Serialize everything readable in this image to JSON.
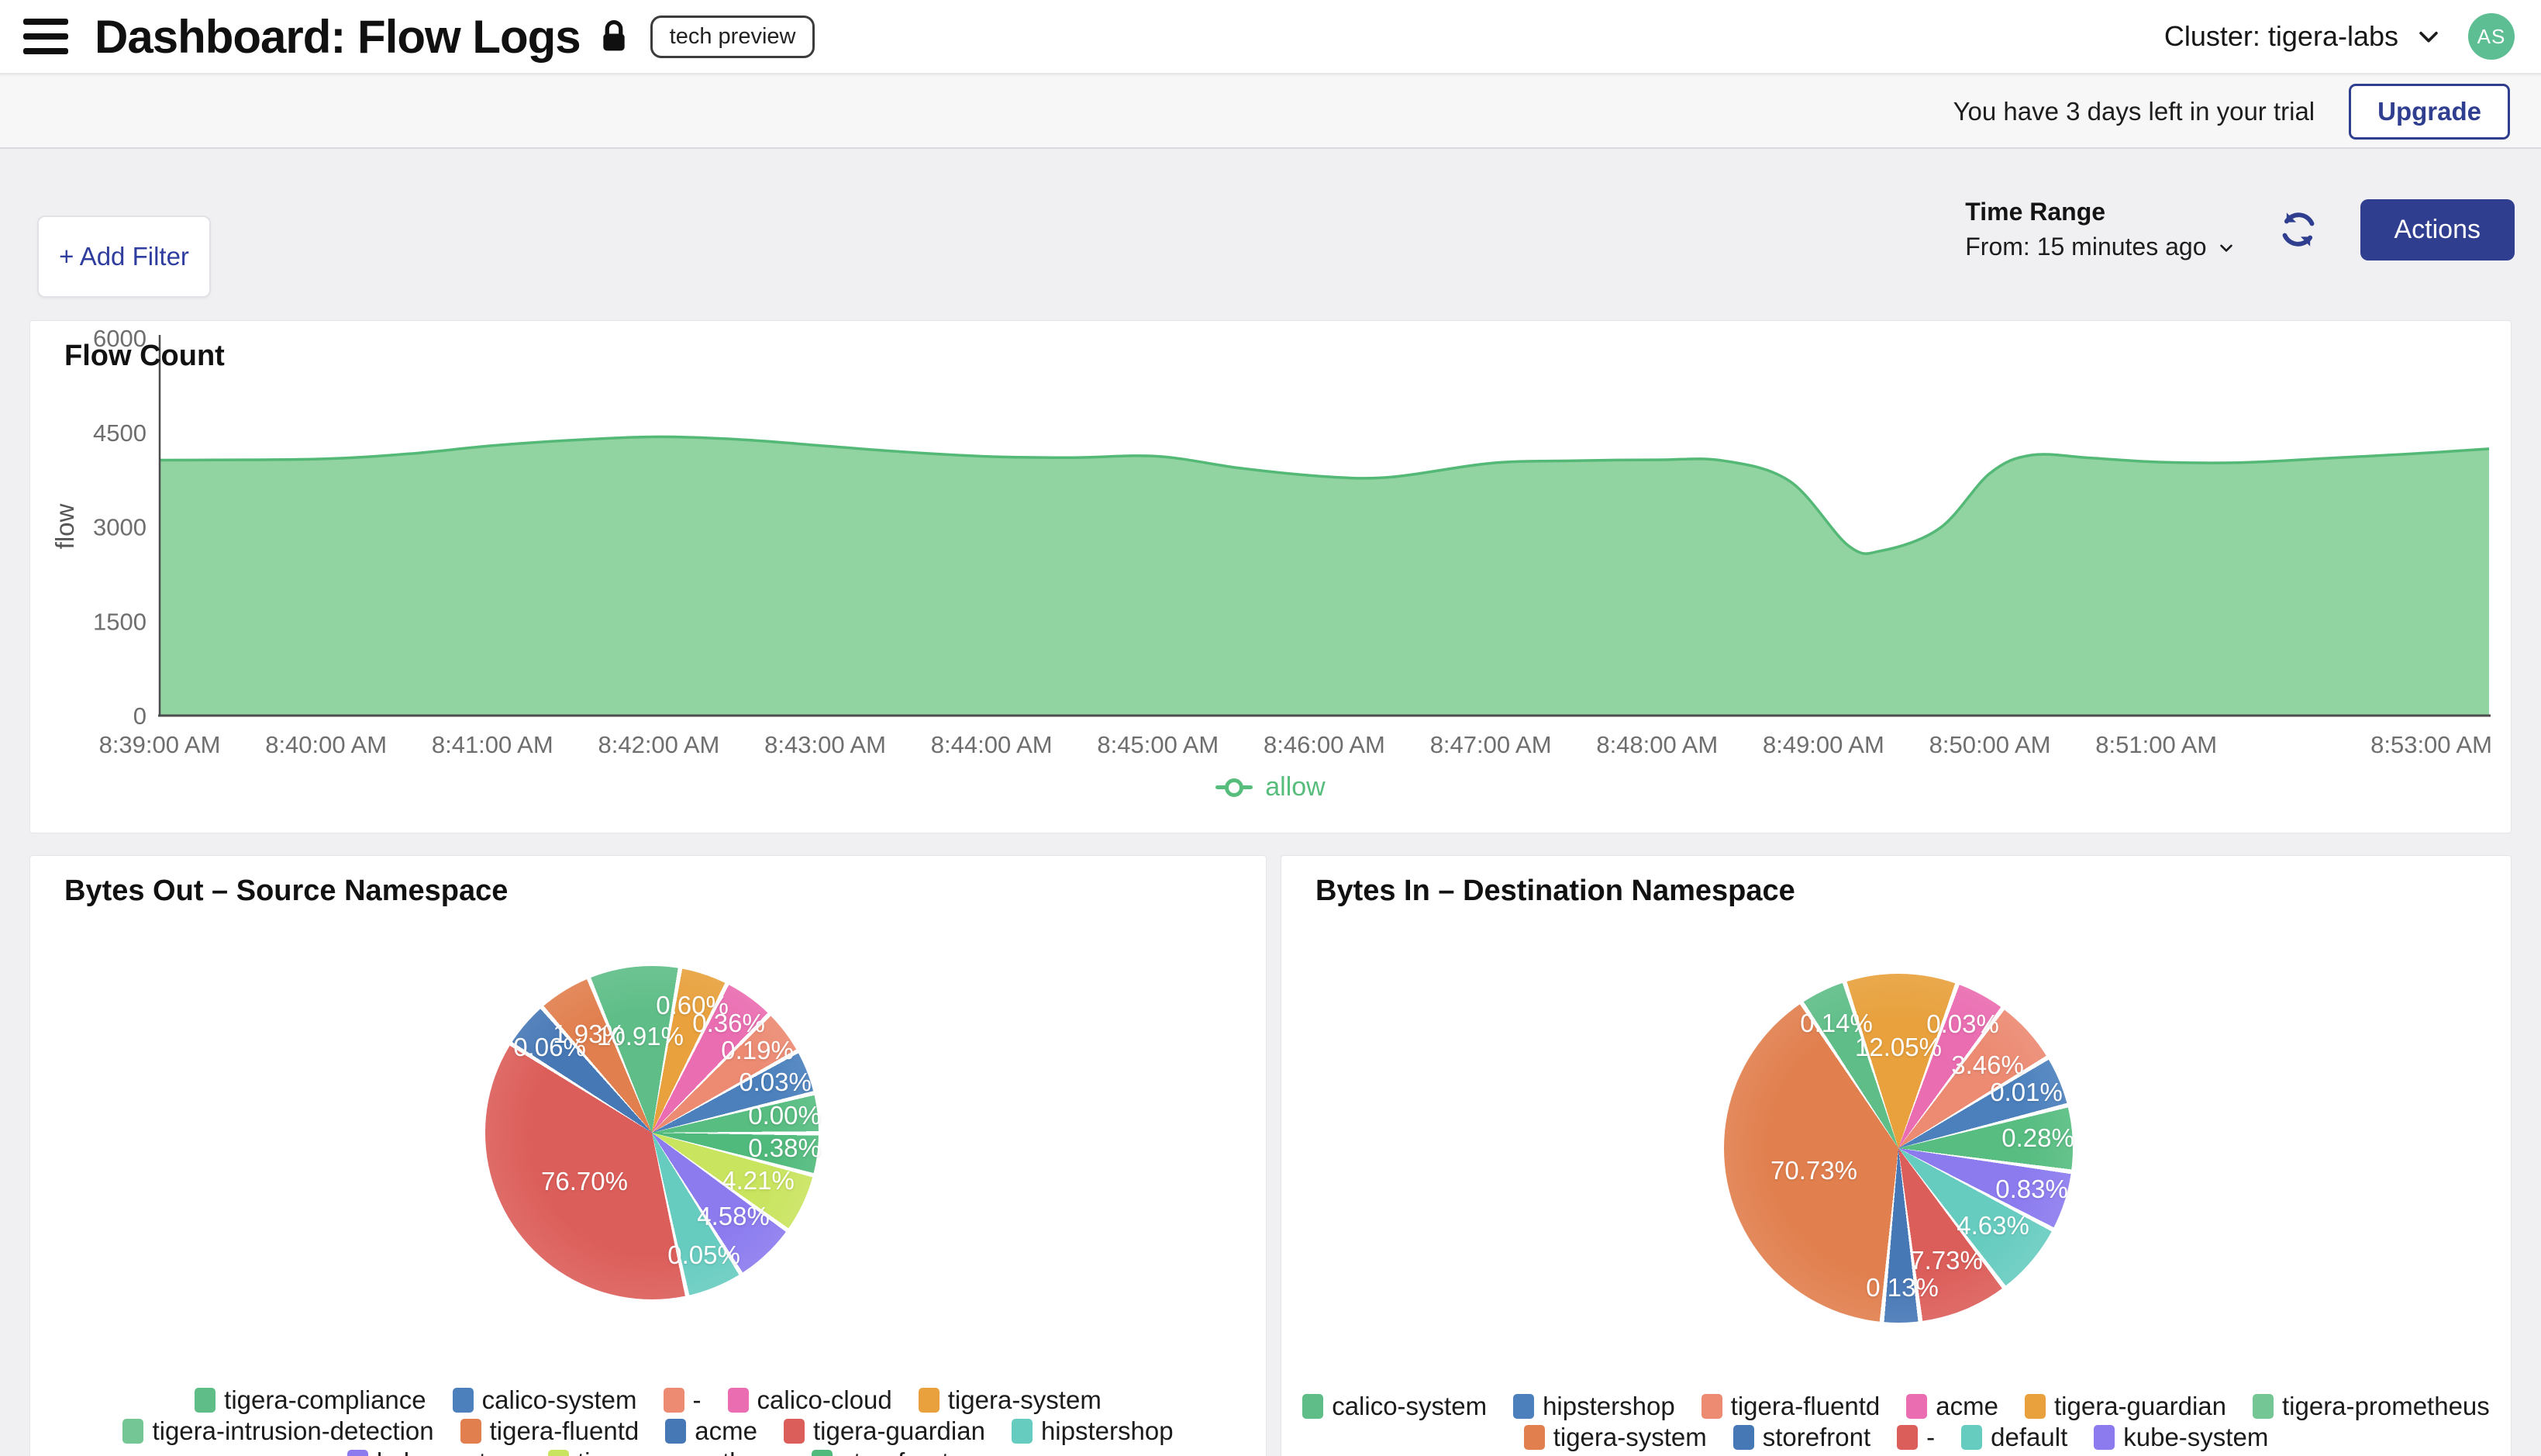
{
  "header": {
    "title": "Dashboard: Flow Logs",
    "badge": "tech preview",
    "cluster": "Cluster: tigera-labs",
    "avatar_initials": "AS"
  },
  "trial": {
    "message": "You have 3 days left in your trial",
    "upgrade_label": "Upgrade"
  },
  "toolbar": {
    "add_filter_label": "+ Add Filter",
    "time_range_label": "Time Range",
    "time_range_value": "From: 15 minutes ago",
    "actions_label": "Actions"
  },
  "colors": {
    "navy": "#2f3e8f",
    "area_fill": "#92d3a2",
    "area_line": "#54b876",
    "allow_green": "#57bd7c",
    "axis_text": "#6e6e6e",
    "axis_line": "#4c4c4c"
  },
  "chart_data": [
    {
      "id": "flow",
      "type": "area",
      "title": "Flow Count",
      "ylabel": "flow",
      "legend": "allow",
      "legend_position": "bottom-center",
      "grid": false,
      "ylim": [
        0,
        6000
      ],
      "yticks": [
        0,
        1500,
        3000,
        4500,
        6000
      ],
      "xticks": [
        {
          "t": 0,
          "label": "8:39:00 AM"
        },
        {
          "t": 1,
          "label": "8:40:00 AM"
        },
        {
          "t": 2,
          "label": "8:41:00 AM"
        },
        {
          "t": 3,
          "label": "8:42:00 AM"
        },
        {
          "t": 4,
          "label": "8:43:00 AM"
        },
        {
          "t": 5,
          "label": "8:44:00 AM"
        },
        {
          "t": 6,
          "label": "8:45:00 AM"
        },
        {
          "t": 7,
          "label": "8:46:00 AM"
        },
        {
          "t": 8,
          "label": "8:47:00 AM"
        },
        {
          "t": 9,
          "label": "8:48:00 AM"
        },
        {
          "t": 10,
          "label": "8:49:00 AM"
        },
        {
          "t": 11,
          "label": "8:50:00 AM"
        },
        {
          "t": 12,
          "label": "8:51:00 AM"
        },
        {
          "t": 14,
          "label": "8:53:00 AM"
        }
      ],
      "series": [
        {
          "name": "allow",
          "line_color": "#54b876",
          "fill_color": "#92d3a2",
          "points": [
            [
              0,
              4060
            ],
            [
              0.5,
              4065
            ],
            [
              1,
              4080
            ],
            [
              1.5,
              4160
            ],
            [
              2,
              4290
            ],
            [
              2.5,
              4380
            ],
            [
              3,
              4430
            ],
            [
              3.5,
              4385
            ],
            [
              4,
              4285
            ],
            [
              4.5,
              4185
            ],
            [
              5,
              4115
            ],
            [
              5.5,
              4100
            ],
            [
              6,
              4120
            ],
            [
              6.5,
              3930
            ],
            [
              7,
              3800
            ],
            [
              7.4,
              3790
            ],
            [
              8,
              4010
            ],
            [
              8.5,
              4050
            ],
            [
              9,
              4065
            ],
            [
              9.4,
              4050
            ],
            [
              9.8,
              3720
            ],
            [
              10.15,
              2700
            ],
            [
              10.35,
              2620
            ],
            [
              10.7,
              2980
            ],
            [
              11,
              3850
            ],
            [
              11.25,
              4140
            ],
            [
              11.6,
              4095
            ],
            [
              12,
              4030
            ],
            [
              12.5,
              4020
            ],
            [
              13,
              4085
            ],
            [
              13.5,
              4155
            ],
            [
              14,
              4240
            ]
          ]
        }
      ]
    },
    {
      "id": "bytes_out",
      "type": "pie",
      "title": "Bytes Out – Source Namespace",
      "slices": [
        {
          "name": "tigera-compliance",
          "value": 10.91,
          "pct_label": "10.91%",
          "color": "#5fbe88",
          "deg_start": -23,
          "deg_end": 9
        },
        {
          "name": "tigera-system",
          "value": 0.6,
          "pct_label": "0.60%",
          "color": "#e8a13d",
          "deg_start": 9,
          "deg_end": 26
        },
        {
          "name": "calico-cloud",
          "value": 0.36,
          "pct_label": "0.36%",
          "color": "#ea6cb1",
          "deg_start": 26,
          "deg_end": 44
        },
        {
          "name": "-",
          "value": 0.19,
          "pct_label": "0.19%",
          "color": "#ec8a72",
          "deg_start": 44,
          "deg_end": 60
        },
        {
          "name": "calico-system",
          "value": 0.03,
          "pct_label": "0.03%",
          "color": "#4b80bd",
          "deg_start": 60,
          "deg_end": 75.5
        },
        {
          "name": "tigera-intrusion-detection",
          "value": 0.0,
          "pct_label": "0.00%",
          "color": "#57bd81",
          "deg_start": 75.5,
          "deg_end": 89.5
        },
        {
          "name": "storefront",
          "value": 0.38,
          "pct_label": "0.38%",
          "color": "#50ba7c",
          "deg_start": 89.5,
          "deg_end": 104
        },
        {
          "name": "tigera-prometheus",
          "value": 4.21,
          "pct_label": "4.21%",
          "color": "#c9e45f",
          "deg_start": 104,
          "deg_end": 125
        },
        {
          "name": "kube-system",
          "value": 4.58,
          "pct_label": "4.58%",
          "color": "#8b7bef",
          "deg_start": 125,
          "deg_end": 147
        },
        {
          "name": "hipstershop",
          "value": 0.05,
          "pct_label": "0.05%",
          "color": "#67ccc0",
          "deg_start": 147,
          "deg_end": 167
        },
        {
          "name": "tigera-guardian",
          "value": 76.7,
          "pct_label": "76.70%",
          "color": "#dc5e5a",
          "deg_start": 167,
          "deg_end": 301.5
        },
        {
          "name": "acme",
          "value": 0.06,
          "pct_label": "0.06%",
          "color": "#4778b6",
          "deg_start": 301.5,
          "deg_end": 318
        },
        {
          "name": "tigera-fluentd",
          "value": 1.93,
          "pct_label": "1.93%",
          "color": "#e17f4e",
          "deg_start": 318,
          "deg_end": 337
        }
      ],
      "legend_rows": [
        [
          {
            "name": "tigera-compliance",
            "color": "#5fbe88"
          },
          {
            "name": "calico-system",
            "color": "#4b80bd"
          },
          {
            "name": "-",
            "color": "#ec8a72"
          },
          {
            "name": "calico-cloud",
            "color": "#ea6cb1"
          },
          {
            "name": "tigera-system",
            "color": "#e8a13d"
          }
        ],
        [
          {
            "name": "tigera-intrusion-detection",
            "color": "#74c795"
          },
          {
            "name": "tigera-fluentd",
            "color": "#e17f4e"
          },
          {
            "name": "acme",
            "color": "#4778b6"
          },
          {
            "name": "tigera-guardian",
            "color": "#dc5e5a"
          },
          {
            "name": "hipstershop",
            "color": "#67ccc0"
          }
        ],
        [
          {
            "name": "kube-system",
            "color": "#8b7bef"
          },
          {
            "name": "tigera-prometheus",
            "color": "#c9e45f"
          },
          {
            "name": "storefront",
            "color": "#50ba7c"
          }
        ]
      ]
    },
    {
      "id": "bytes_in",
      "type": "pie",
      "title": "Bytes In – Destination Namespace",
      "slices": [
        {
          "name": "tigera-guardian",
          "value": 12.05,
          "pct_label": "12.05%",
          "color": "#e8a13d",
          "deg_start": -18.7,
          "deg_end": 19
        },
        {
          "name": "acme",
          "value": 0.03,
          "pct_label": "0.03%",
          "color": "#ea6cb1",
          "deg_start": 19,
          "deg_end": 36
        },
        {
          "name": "tigera-fluentd",
          "value": 3.46,
          "pct_label": "3.46%",
          "color": "#ec8a72",
          "deg_start": 36,
          "deg_end": 58
        },
        {
          "name": "hipstershop",
          "value": 0.01,
          "pct_label": "0.01%",
          "color": "#4b80bd",
          "deg_start": 58,
          "deg_end": 75
        },
        {
          "name": "tigera-prometheus",
          "value": 0.28,
          "pct_label": "0.28%",
          "color": "#57bd81",
          "deg_start": 75,
          "deg_end": 97
        },
        {
          "name": "kube-system",
          "value": 0.83,
          "pct_label": "0.83%",
          "color": "#8b7bef",
          "deg_start": 97,
          "deg_end": 117
        },
        {
          "name": "default",
          "value": 4.63,
          "pct_label": "4.63%",
          "color": "#67ccc0",
          "deg_start": 117,
          "deg_end": 142
        },
        {
          "name": "-",
          "value": 7.73,
          "pct_label": "7.73%",
          "color": "#dc5e5a",
          "deg_start": 142,
          "deg_end": 172
        },
        {
          "name": "storefront",
          "value": 0.13,
          "pct_label": "0.13%",
          "color": "#4778b6",
          "deg_start": 172,
          "deg_end": 184.7
        },
        {
          "name": "tigera-system",
          "value": 70.73,
          "pct_label": "70.73%",
          "color": "#e17f4e",
          "deg_start": 184.7,
          "deg_end": 325.6
        },
        {
          "name": "calico-system",
          "value": 0.14,
          "pct_label": "0.14%",
          "color": "#5fbe88",
          "deg_start": 325.6,
          "deg_end": 341.3
        }
      ],
      "legend_rows": [
        [
          {
            "name": "calico-system",
            "color": "#5fbe88"
          },
          {
            "name": "hipstershop",
            "color": "#4b80bd"
          },
          {
            "name": "tigera-fluentd",
            "color": "#ec8a72"
          },
          {
            "name": "acme",
            "color": "#ea6cb1"
          },
          {
            "name": "tigera-guardian",
            "color": "#e8a13d"
          },
          {
            "name": "tigera-prometheus",
            "color": "#74c795"
          }
        ],
        [
          {
            "name": "tigera-system",
            "color": "#e17f4e"
          },
          {
            "name": "storefront",
            "color": "#4778b6"
          },
          {
            "name": "-",
            "color": "#dc5e5a"
          },
          {
            "name": "default",
            "color": "#67ccc0"
          },
          {
            "name": "kube-system",
            "color": "#8b7bef"
          }
        ]
      ]
    }
  ]
}
